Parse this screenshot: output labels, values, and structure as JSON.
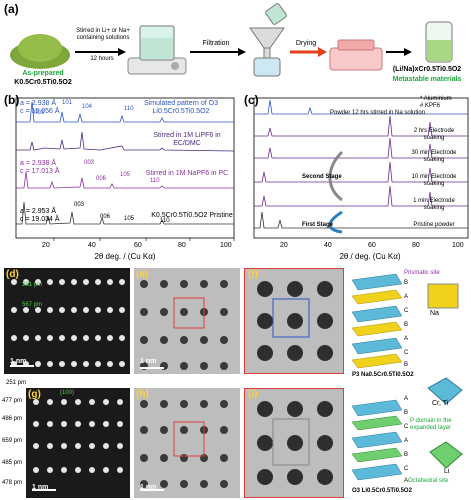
{
  "panel_a": {
    "label": "(a)",
    "powder_label": "As-prepared",
    "powder_formula": "K0.5Cr0.5Ti0.5O2",
    "step1_label": "Stirred in Li+ or Na+ containing solutions",
    "step1_time": "12 hours",
    "step2_label": "Filtration",
    "step3_label": "Drying",
    "product_formula": "(Li/Na)xCr0.5Ti0.5O2",
    "product_desc": "Metastable materials"
  },
  "panel_b": {
    "label": "(b)",
    "xlabel": "2θ deg. / (Cu Kα)",
    "ticks_x": [
      "20",
      "40",
      "60",
      "80",
      "100"
    ],
    "traces": [
      {
        "a": "a = 2.938 Å",
        "c": "c = 15.056 Å",
        "title": "Simulated pattern of O3 Li0.5Cr0.5Ti0.5O2",
        "peaks": [
          "003",
          "101",
          "104",
          "110"
        ],
        "color": "#2b55c8"
      },
      {
        "a": "",
        "c": "",
        "title": "Stirred in 1M LiPF6 in EC/DMC",
        "peaks": [],
        "color": "#6b2a8f"
      },
      {
        "a": "a = 2.938 Å",
        "c": "c = 17.013 Å",
        "title": "Stirred in 1M NaPF6 in PC",
        "peaks": [
          "003",
          "006",
          "105",
          "110"
        ],
        "color": "#8a2fa0"
      },
      {
        "a": "a = 2.953 Å",
        "c": "c = 19.034 Å",
        "title": "K0.5Cr0.5Ti0.5O2 Pristine",
        "peaks": [
          "003",
          "006",
          "105",
          "110"
        ],
        "color": "#333333"
      }
    ]
  },
  "panel_c": {
    "label": "(c)",
    "xlabel": "2θ / deg. (Cu Kα)",
    "ticks_x": [
      "20",
      "40",
      "60",
      "80",
      "100"
    ],
    "legend": [
      "* Aluminium",
      "# KPF6"
    ],
    "traces": [
      "Powder 12 hrs stirred in Na solution",
      "2 hrs Electrode soaking",
      "30 min Electrode soaking",
      "10 min Electrode soaking",
      "1 min Electrode soaking",
      "Pristine powder"
    ],
    "stages": [
      "Second Stage",
      "First Stage"
    ]
  },
  "panel_d": {
    "label": "(d)",
    "m1": "281 pm",
    "m2": "567 pm",
    "scale": "1 nm"
  },
  "panel_e": {
    "label": "(e)",
    "scale": "1 nm"
  },
  "panel_f": {
    "label": "(f)"
  },
  "panel_g": {
    "label": "(g)",
    "m_top": "251 pm",
    "zone": "(100)",
    "rows": [
      "477 pm",
      "486 pm",
      "659 pm",
      "485 pm",
      "478 pm"
    ],
    "scale": "1 nm"
  },
  "panel_h": {
    "label": "(h)",
    "scale": "1 nm"
  },
  "panel_i": {
    "label": "(i)"
  },
  "models": {
    "prismatic": "Prismatic site",
    "na": "Na",
    "p3_formula": "P3 Na0.5Cr0.5Ti0.5O2",
    "crti": "Cr, Ti",
    "p_domain": "P domain in the expanded layer",
    "li": "Li",
    "octahedral": "Octahedral site",
    "o3_formula": "O3 Li0.5Cr0.5Ti0.5O2",
    "stacking_top": [
      "B",
      "A",
      "C",
      "B",
      "A",
      "C",
      "B"
    ],
    "stacking_bottom": [
      "A",
      "B",
      "C",
      "A",
      "B",
      "C",
      "A"
    ]
  },
  "colors": {
    "green_accent": "#1aa83a",
    "purple_accent": "#8a2fa0",
    "blue_accent": "#2b55c8",
    "yellow": "#ffd23f"
  }
}
